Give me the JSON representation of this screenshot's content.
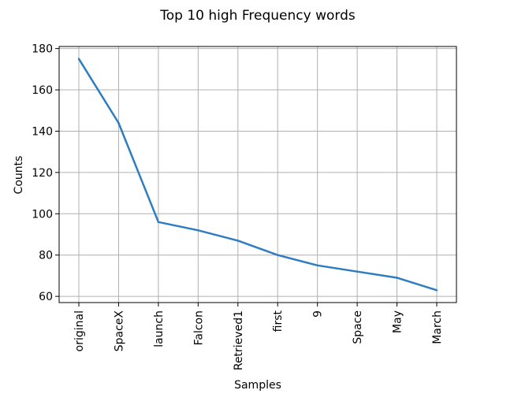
{
  "chart_data": {
    "type": "line",
    "title": "Top 10 high Frequency words",
    "xlabel": "Samples",
    "ylabel": "Counts",
    "categories": [
      "original",
      "SpaceX",
      "launch",
      "Falcon",
      "Retrieved1",
      "first",
      "9",
      "Space",
      "May",
      "March"
    ],
    "series": [
      {
        "values": [
          175,
          144,
          96,
          92,
          87,
          80,
          75,
          72,
          69,
          63
        ]
      }
    ],
    "ylim": [
      57,
      181
    ],
    "yticks": [
      60,
      80,
      100,
      120,
      140,
      160,
      180
    ],
    "grid": true,
    "line_color": "#2f7dc0"
  }
}
